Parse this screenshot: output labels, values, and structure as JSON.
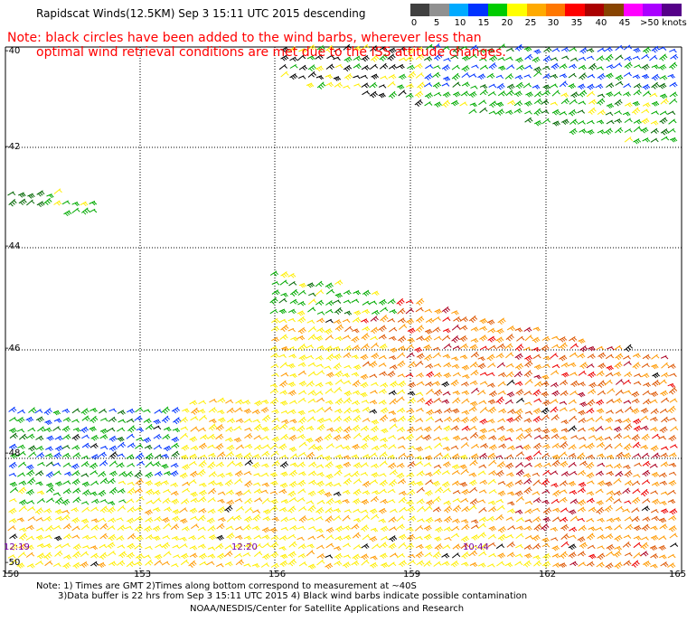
{
  "title": "Rapidscat Winds(12.5KM) Sep  3 15:11 UTC 2015 descending",
  "note": {
    "line1": "Note: black circles have been added to the wind barbs, wherever less than",
    "line2": "optimal wind retrieval conditions are met due to the ISS attitude changes."
  },
  "scale": {
    "colors": [
      "#404040",
      "#909090",
      "#00aaff",
      "#0033ff",
      "#00cc00",
      "#ffff00",
      "#ffaa00",
      "#ff7700",
      "#ff0000",
      "#aa0000",
      "#884400",
      "#ff00ff",
      "#aa00ff",
      "#550088"
    ],
    "labels": [
      "0",
      "5",
      "10",
      "15",
      "20",
      "25",
      "30",
      "35",
      "40",
      "45",
      ">50 knots"
    ]
  },
  "lat_labels": [
    "-40",
    "-42",
    "-44",
    "-46",
    "-48",
    "-50"
  ],
  "lon_labels": [
    "150",
    "153",
    "156",
    "159",
    "162",
    "165"
  ],
  "time_labels": [
    "12:19",
    "12:20",
    "10:44"
  ],
  "footer": {
    "line1": "Note: 1) Times are GMT 2)Times along bottom correspond to measurement at ~40S",
    "line2": "3)Data buffer is 22 hrs from Sep  3 15:11 UTC 2015 4) Black wind barbs indicate possible contamination",
    "line3": "NOAA/NESDIS/Center for Satellite Applications and Research"
  },
  "legend_colors": {
    "black": "#000000",
    "blue": "#0033ff",
    "green": "#00aa00",
    "darkgreen": "#006600",
    "yellow": "#ffee00",
    "orange": "#ff9900",
    "darkorange": "#dd5500",
    "red": "#ee0000",
    "darkred": "#aa0022",
    "magenta": "#cc0077"
  }
}
